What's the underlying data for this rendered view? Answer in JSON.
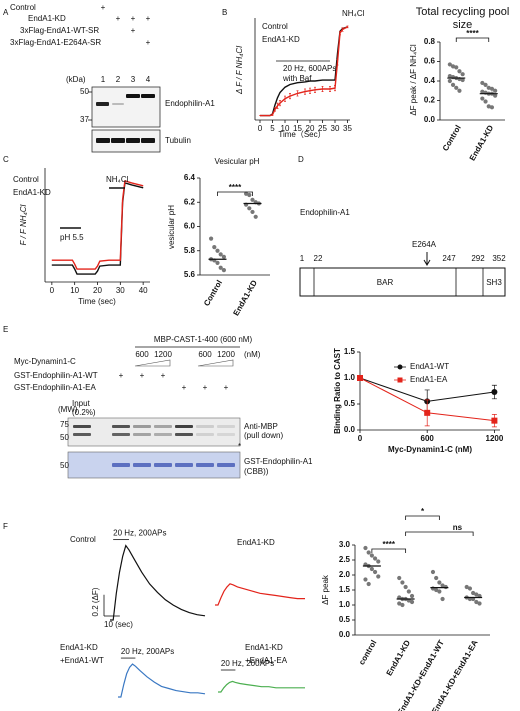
{
  "panel_labels": [
    "A",
    "B",
    "C",
    "D",
    "E",
    "F"
  ],
  "panel_a": {
    "rows": [
      {
        "label": "Control",
        "marks": [
          "+",
          null,
          null,
          null
        ]
      },
      {
        "label": "EndA1-KD",
        "marks": [
          null,
          "+",
          "+",
          "+"
        ]
      },
      {
        "label": "3xFlag-EndA1-WT-SR",
        "marks": [
          null,
          null,
          "+",
          null
        ]
      },
      {
        "label": "3xFlag-EndA1-E264A-SR",
        "marks": [
          null,
          null,
          null,
          "+"
        ]
      }
    ],
    "kda": "(kDa)",
    "lanes": [
      "1",
      "2",
      "3",
      "4"
    ],
    "mw": [
      "50",
      "37"
    ],
    "blots": [
      "Endophilin-A1",
      "Tubulin"
    ]
  },
  "panel_d": {
    "title": "Endophilin-A1",
    "mutation": "E264A",
    "positions": [
      "1",
      "22",
      "247",
      "292",
      "352"
    ],
    "domains": [
      "BAR",
      "SH3"
    ]
  },
  "panel_e": {
    "header": "MBP-CAST-1-400 (600 nM)",
    "dynamin": {
      "label": "Myc-Dynamin1-C",
      "doses": [
        null,
        null,
        "600",
        "1200",
        null,
        "600",
        "1200"
      ],
      "unit": "(nM)"
    },
    "rows": [
      {
        "label": "GST-Endophilin-A1-WT",
        "marks": [
          null,
          "+",
          "+",
          "+",
          null,
          null,
          null
        ]
      },
      {
        "label": "GST-Endophilin-A1-EA",
        "marks": [
          null,
          null,
          null,
          null,
          "+",
          "+",
          "+"
        ]
      }
    ],
    "mw": "(MW)",
    "input": [
      "Input",
      "(0.2%)"
    ],
    "mw_ticks": [
      "75",
      "50",
      "50"
    ],
    "blots": [
      "Anti-MBP",
      "(pull down)",
      "*",
      "GST-Endophilin-A1",
      "(CBB))"
    ]
  },
  "chart_data": [
    {
      "type": "line",
      "x_label": "Time（Sec）",
      "y_label": "Δ F / F NH₄Cl",
      "annotations": [
        "20 Hz, 600APs",
        "with Baf",
        "NH₄Cl"
      ],
      "x": [
        0,
        2,
        4,
        5,
        6,
        7,
        8,
        10,
        12,
        15,
        18,
        20,
        22,
        25,
        28,
        30,
        31,
        32,
        33,
        35
      ],
      "xlim": [
        -2,
        36
      ],
      "ylim": [
        -0.05,
        1.1
      ],
      "xticks": [
        0,
        5,
        10,
        15,
        20,
        25,
        30,
        35
      ],
      "series": [
        {
          "name": "Control",
          "color": "#111111",
          "values": [
            0,
            0,
            0,
            0.02,
            0.12,
            0.2,
            0.26,
            0.32,
            0.35,
            0.37,
            0.38,
            0.39,
            0.39,
            0.4,
            0.4,
            0.4,
            0.7,
            0.95,
            0.98,
            1.0
          ]
        },
        {
          "name": "EndA1-KD",
          "color": "#e3241b",
          "values": [
            0,
            0,
            0,
            0.01,
            0.07,
            0.11,
            0.14,
            0.19,
            0.22,
            0.25,
            0.27,
            0.28,
            0.29,
            0.3,
            0.3,
            0.31,
            0.6,
            0.93,
            0.97,
            1.0
          ],
          "errors": [
            0,
            0,
            0,
            0.01,
            0.02,
            0.03,
            0.03,
            0.03,
            0.03,
            0.03,
            0.03,
            0.03,
            0.03,
            0.03,
            0.03,
            0.03,
            0.03,
            0.02,
            0.02,
            0.01
          ]
        }
      ]
    },
    {
      "type": "dot",
      "title": "Total recycling pool size",
      "y_label": "ΔF peak / ΔF NH₄Cl",
      "categories": [
        "Control",
        "EndA1-KD"
      ],
      "values": [
        [
          0.57,
          0.55,
          0.54,
          0.5,
          0.47,
          0.45,
          0.44,
          0.43,
          0.42,
          0.41,
          0.4,
          0.36,
          0.33,
          0.3
        ],
        [
          0.38,
          0.36,
          0.33,
          0.32,
          0.3,
          0.29,
          0.28,
          0.27,
          0.27,
          0.25,
          0.22,
          0.19,
          0.14,
          0.13
        ]
      ],
      "medians": [
        0.43,
        0.27
      ],
      "color": "#777777",
      "significance": [
        "****"
      ],
      "ylim": [
        0,
        0.8
      ],
      "yticks": [
        {
          "value": 0,
          "label": "0.0"
        },
        0.2,
        0.4,
        0.6,
        0.8
      ]
    },
    {
      "type": "line",
      "x_label": "Time (sec)",
      "y_label": "F / F NH₄Cl",
      "annotations": [
        "pH 5.5",
        "NH₄Cl"
      ],
      "x": [
        0,
        5,
        9,
        10,
        11,
        15,
        19,
        20,
        21,
        25,
        29,
        30,
        31,
        32,
        35,
        40
      ],
      "xlim": [
        -3,
        43
      ],
      "ylim": [
        -0.05,
        1.1
      ],
      "xticks": [
        0,
        10,
        20,
        30,
        40
      ],
      "series": [
        {
          "name": "Control",
          "color": "#111111",
          "values": [
            0.12,
            0.12,
            0.12,
            0.08,
            0.03,
            0.03,
            0.03,
            0.06,
            0.11,
            0.12,
            0.12,
            0.12,
            0.75,
            0.95,
            0.93,
            0.9
          ]
        },
        {
          "name": "EndA1-KD",
          "color": "#e3241b",
          "values": [
            0.17,
            0.17,
            0.17,
            0.13,
            0.08,
            0.08,
            0.08,
            0.11,
            0.16,
            0.17,
            0.17,
            0.17,
            0.78,
            0.97,
            0.95,
            0.92
          ]
        }
      ]
    },
    {
      "type": "dot",
      "title": "Vesicular pH",
      "y_label": "vesicular pH",
      "categories": [
        "Control",
        "EndA1-KD"
      ],
      "values": [
        [
          5.9,
          5.83,
          5.8,
          5.77,
          5.75,
          5.73,
          5.72,
          5.7,
          5.66,
          5.64
        ],
        [
          6.27,
          6.26,
          6.22,
          6.2,
          6.19,
          6.18,
          6.15,
          6.12,
          6.08
        ]
      ],
      "medians": [
        5.73,
        6.19
      ],
      "color": "#777777",
      "significance": [
        "****"
      ],
      "ylim": [
        5.6,
        6.4
      ],
      "yticks": [
        5.6,
        5.8,
        {
          "value": 6,
          "label": "6.0"
        },
        6.2,
        6.4
      ]
    },
    {
      "type": "line",
      "x_label": "Myc-Dynamin1-C (nM)",
      "y_label": "Binding Ratio to CAST",
      "x": [
        0,
        600,
        1200
      ],
      "xlim": [
        0,
        1250
      ],
      "ylim": [
        0,
        1.5
      ],
      "xticks": [
        0,
        600,
        1200
      ],
      "yticks": [
        {
          "value": 0,
          "label": "0.0"
        },
        0.5,
        {
          "value": 1,
          "label": "1.0"
        },
        1.5
      ],
      "series": [
        {
          "name": "EndA1-WT",
          "color": "#111111",
          "marker": "circle",
          "values": [
            1.0,
            0.55,
            0.73
          ],
          "errors": [
            0,
            0.22,
            0.13
          ]
        },
        {
          "name": "EndA1-EA",
          "color": "#e3241b",
          "marker": "square",
          "values": [
            1.0,
            0.33,
            0.18
          ],
          "errors": [
            0,
            0.25,
            0.12
          ]
        }
      ]
    },
    {
      "type": "dot",
      "y_label": "ΔF peak",
      "categories": [
        "control",
        "EndA1-KD",
        "EndA1-KD+EndA1-WT",
        "EndA1-KD+EndA1-EA"
      ],
      "values": [
        [
          2.9,
          2.75,
          2.65,
          2.55,
          2.45,
          2.35,
          2.3,
          2.2,
          2.1,
          1.95,
          1.85,
          1.7
        ],
        [
          1.9,
          1.75,
          1.6,
          1.45,
          1.3,
          1.25,
          1.2,
          1.2,
          1.15,
          1.1,
          1.05,
          1.0
        ],
        [
          2.1,
          1.9,
          1.75,
          1.65,
          1.6,
          1.55,
          1.5,
          1.45,
          1.2
        ],
        [
          1.6,
          1.55,
          1.4,
          1.35,
          1.3,
          1.25,
          1.2,
          1.2,
          1.1,
          1.05
        ]
      ],
      "medians": [
        2.3,
        1.2,
        1.58,
        1.25
      ],
      "color": "#777777",
      "significance": [
        "****",
        "*",
        "ns"
      ],
      "ylim": [
        0,
        3
      ],
      "yticks": [
        {
          "value": 0,
          "label": "0.0"
        },
        0.5,
        {
          "value": 1,
          "label": "1.0"
        },
        1.5,
        {
          "value": 2,
          "label": "2.0"
        },
        2.5,
        {
          "value": 3,
          "label": "3.0"
        }
      ]
    },
    {
      "type": "line",
      "title": [
        "Control"
      ],
      "annotations": [
        "20 Hz, 200APs"
      ],
      "scalebar": {
        "y": 0.2,
        "y_label": "0.2 (ΔF)",
        "x": 10,
        "x_label": "10 (sec)"
      },
      "x": [
        0,
        2,
        4,
        6,
        8,
        10,
        12,
        15,
        20,
        25,
        30,
        35,
        40,
        45,
        50,
        55,
        60
      ],
      "xlim": [
        0,
        60
      ],
      "ylim": [
        0,
        0.8
      ],
      "series": [
        {
          "color": "#111111",
          "values": [
            0,
            0,
            0.25,
            0.45,
            0.6,
            0.7,
            0.66,
            0.58,
            0.45,
            0.34,
            0.26,
            0.19,
            0.14,
            0.1,
            0.07,
            0.05,
            0.04
          ]
        }
      ]
    },
    {
      "type": "line",
      "title": [
        "EndA1-KD"
      ],
      "x": [
        0,
        2,
        4,
        6,
        8,
        10,
        12,
        15,
        20,
        25,
        30,
        35,
        40,
        45,
        50,
        55,
        60
      ],
      "xlim": [
        0,
        60
      ],
      "ylim": [
        0,
        0.8
      ],
      "series": [
        {
          "color": "#e3241b",
          "values": [
            0,
            0,
            0.07,
            0.13,
            0.17,
            0.2,
            0.19,
            0.17,
            0.15,
            0.13,
            0.11,
            0.1,
            0.09,
            0.08,
            0.07,
            0.06,
            0.06
          ]
        }
      ]
    },
    {
      "type": "line",
      "title": [
        "EndA1-KD",
        "+EndA1-WT"
      ],
      "annotations": [
        "20 Hz, 200APs"
      ],
      "x": [
        0,
        2,
        4,
        6,
        8,
        10,
        12,
        15,
        20,
        25,
        30,
        35,
        40,
        45,
        50,
        55,
        60
      ],
      "xlim": [
        0,
        60
      ],
      "ylim": [
        0,
        0.8
      ],
      "series": [
        {
          "color": "#3a78c3",
          "values": [
            0,
            0,
            0.12,
            0.22,
            0.28,
            0.31,
            0.29,
            0.25,
            0.19,
            0.14,
            0.1,
            0.08,
            0.06,
            0.05,
            0.04,
            0.04,
            0.03
          ]
        }
      ]
    },
    {
      "type": "line",
      "title": [
        "EndA1-KD",
        "+EndA1-EA"
      ],
      "annotations": [
        "20 Hz, 200APs"
      ],
      "x": [
        0,
        2,
        4,
        6,
        8,
        10,
        12,
        15,
        20,
        25,
        30,
        35,
        40,
        45,
        50,
        55,
        60
      ],
      "xlim": [
        0,
        60
      ],
      "ylim": [
        0,
        0.8
      ],
      "series": [
        {
          "color": "#4caf50",
          "values": [
            0,
            0,
            0.04,
            0.07,
            0.09,
            0.1,
            0.09,
            0.08,
            0.07,
            0.06,
            0.05,
            0.05,
            0.04,
            0.04,
            0.04,
            0.04,
            0.04
          ]
        }
      ]
    }
  ]
}
